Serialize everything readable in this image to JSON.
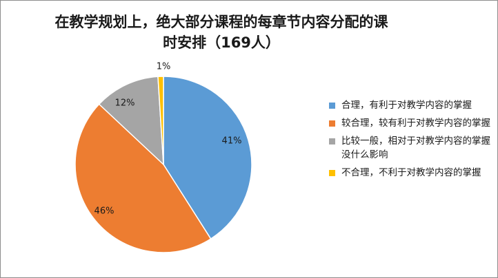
{
  "chart_data": {
    "type": "pie",
    "title_lines": [
      "在教学规划上，绝大部分课程的每章节内容分配的课",
      "时安排（169人）"
    ],
    "categories": [
      "合理，有利于对教学内容的掌握",
      "较合理，较有利于对教学内容的掌握",
      "比较一般，相对于对教学内容的掌握没什么影响",
      "不合理，不利于对教学内容的掌握"
    ],
    "values": [
      41,
      46,
      12,
      1
    ],
    "data_labels": [
      "41%",
      "46%",
      "12%",
      "1%"
    ],
    "colors": [
      "#5b9bd5",
      "#ed7d31",
      "#a5a5a5",
      "#ffc000"
    ],
    "legend_position": "right"
  }
}
